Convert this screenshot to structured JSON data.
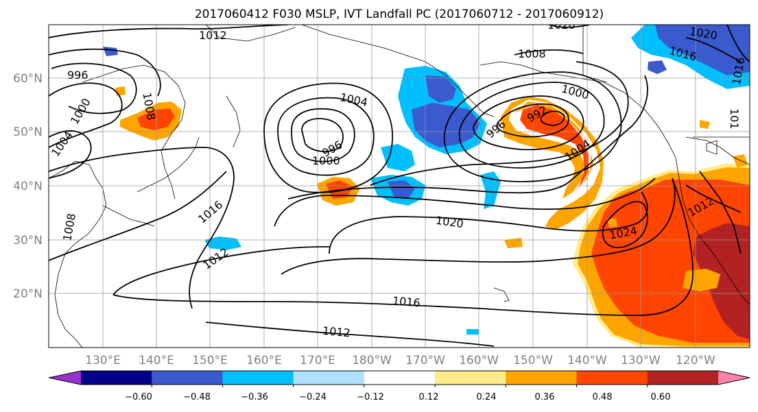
{
  "title": "2017060412 F030 MSLP, IVT Landfall PC (2017060712 - 2017060912)",
  "map": {
    "lat_labels": [
      "60°N",
      "50°N",
      "40°N",
      "30°N",
      "20°N"
    ],
    "lon_labels": [
      "130°E",
      "140°E",
      "150°E",
      "160°E",
      "170°E",
      "180°W",
      "170°W",
      "160°W",
      "150°W",
      "140°W",
      "130°W",
      "120°W"
    ],
    "gridlines": true,
    "contour_labels": [
      "1012",
      "996",
      "1000",
      "1004",
      "1008",
      "1004",
      "996",
      "1000",
      "1016",
      "1012",
      "1008",
      "1020",
      "1008",
      "1000",
      "996",
      "992",
      "1004",
      "1020",
      "1016",
      "1024",
      "1012",
      "1016",
      "1012",
      "1020",
      "1016",
      "101"
    ]
  },
  "colorbar": {
    "ticks": [
      "−0.60",
      "−0.48",
      "−0.36",
      "−0.24",
      "−0.12",
      "0.12",
      "0.24",
      "0.36",
      "0.48",
      "0.60"
    ],
    "colors": [
      "#9932cc",
      "#00008b",
      "#3a5acd",
      "#00bfff",
      "#b0e2ff",
      "#ffffff",
      "#ffec8b",
      "#ffa500",
      "#ff4500",
      "#b22222",
      "#ff82ab"
    ]
  }
}
